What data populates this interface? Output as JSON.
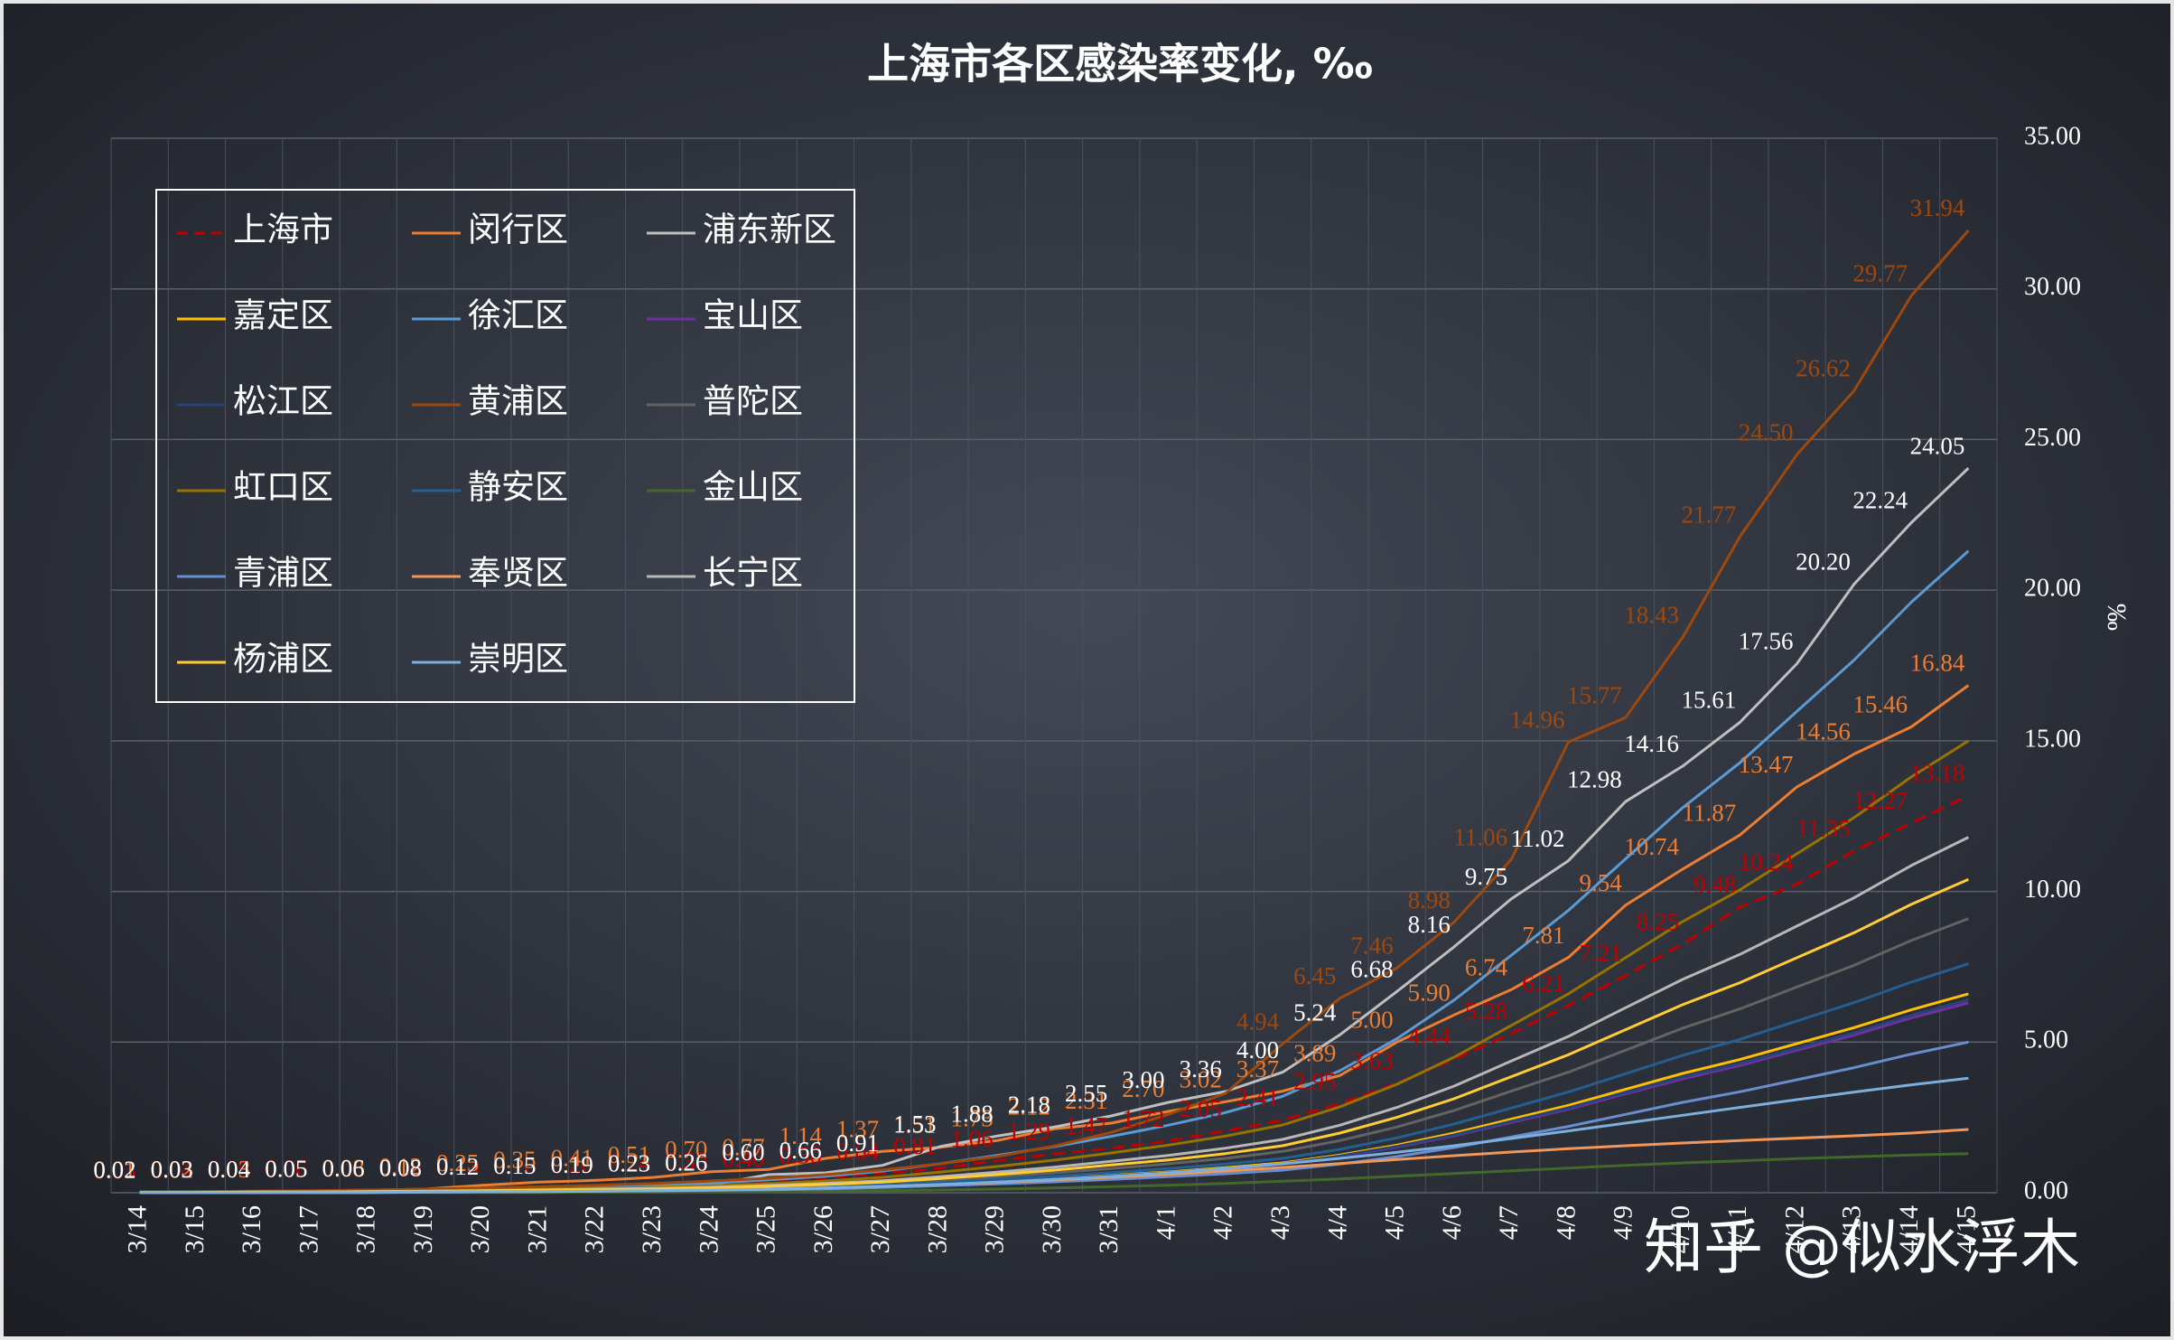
{
  "chart_data": {
    "type": "line",
    "title": "上海市各区感染率变化, ‰",
    "y_label": "‰",
    "watermark": "知乎 @似水浮木",
    "grid": true,
    "y_axis_side": "right",
    "legend": "top-left",
    "categories": [
      "3/14",
      "3/15",
      "3/16",
      "3/17",
      "3/18",
      "3/19",
      "3/20",
      "3/21",
      "3/22",
      "3/23",
      "3/24",
      "3/25",
      "3/26",
      "3/27",
      "3/28",
      "3/29",
      "3/30",
      "3/31",
      "4/1",
      "4/2",
      "4/3",
      "4/4",
      "4/5",
      "4/6",
      "4/7",
      "4/8",
      "4/9",
      "4/10",
      "4/11",
      "4/12",
      "4/13",
      "4/14",
      "4/15"
    ],
    "ylim": [
      0,
      35
    ],
    "yticks": [
      {
        "value": 0,
        "label": "0.00"
      },
      {
        "value": 5,
        "label": "5.00"
      },
      {
        "value": 10,
        "label": "10.00"
      },
      {
        "value": 15,
        "label": "15.00"
      },
      {
        "value": 20,
        "label": "20.00"
      },
      {
        "value": 25,
        "label": "25.00"
      },
      {
        "value": 30,
        "label": "30.00"
      },
      {
        "value": 35,
        "label": "35.00"
      }
    ],
    "series": [
      {
        "name": "上海市",
        "color": "#c00000",
        "dashed": true,
        "values": [
          0.03,
          0.04,
          0.05,
          0.06,
          0.08,
          0.1,
          0.13,
          0.16,
          0.2,
          0.24,
          0.3,
          0.4,
          0.5,
          0.64,
          0.81,
          1.06,
          1.29,
          1.47,
          1.72,
          2.05,
          2.41,
          2.95,
          3.63,
          4.44,
          5.28,
          6.21,
          7.21,
          8.25,
          9.48,
          10.24,
          11.35,
          12.27,
          13.18
        ],
        "value_labels": [
          "0.03",
          "0.04",
          "0.05",
          "0.06",
          "0.08",
          "0.10",
          "0.13",
          "0.16",
          "0.20",
          "0.24",
          "0.30",
          "0.40",
          "0.50",
          "0.64",
          "0.81",
          "1.06",
          "1.29",
          "1.47",
          "1.72",
          "2.05",
          "2.41",
          "2.95",
          "3.63",
          "4.44",
          "5.28",
          "6.21",
          "7.21",
          "8.25",
          "9.48",
          "10.24",
          "11.35",
          "12.27",
          "13.18"
        ]
      },
      {
        "name": "闵行区",
        "color": "#ed7d31",
        "values": [
          0.01,
          0.02,
          0.03,
          0.05,
          0.08,
          0.12,
          0.25,
          0.35,
          0.41,
          0.51,
          0.7,
          0.77,
          1.14,
          1.37,
          1.51,
          1.73,
          2.12,
          2.31,
          2.7,
          3.02,
          3.37,
          3.89,
          5.0,
          5.9,
          6.74,
          7.81,
          9.54,
          10.74,
          11.87,
          13.47,
          14.56,
          15.46,
          16.84
        ],
        "value_labels": [
          "0.01",
          "0.02",
          "0.03",
          "0.05",
          "0.08",
          "0.12",
          "0.25",
          "0.35",
          "0.41",
          "0.51",
          "0.70",
          "0.77",
          "1.14",
          "1.37",
          "1.51",
          "1.73",
          "2.12",
          "2.31",
          "2.70",
          "3.02",
          "3.37",
          "3.89",
          "5.00",
          "5.90",
          "6.74",
          "7.81",
          "9.54",
          "10.74",
          "11.87",
          "13.47",
          "14.56",
          "15.46",
          "16.84"
        ]
      },
      {
        "name": "浦东新区",
        "color": "#bfbfbf",
        "values": [
          0.02,
          0.03,
          0.04,
          0.05,
          0.06,
          0.08,
          0.12,
          0.15,
          0.19,
          0.23,
          0.26,
          0.6,
          0.66,
          0.91,
          1.53,
          1.88,
          2.18,
          2.55,
          3.0,
          3.36,
          4.0,
          5.24,
          6.68,
          8.16,
          9.75,
          11.02,
          12.98,
          14.16,
          15.61,
          17.56,
          20.2,
          22.24,
          24.05
        ],
        "value_labels": [
          "0.02",
          "0.03",
          "0.04",
          "0.05",
          "0.06",
          "0.08",
          "0.12",
          "0.15",
          "0.19",
          "0.23",
          "0.26",
          "0.60",
          "0.66",
          "0.91",
          "1.53",
          "1.88",
          "2.18",
          "2.55",
          "3.00",
          "3.36",
          "4.00",
          "5.24",
          "6.68",
          "8.16",
          "9.75",
          "11.02",
          "12.98",
          "14.16",
          "15.61",
          "17.56",
          "20.20",
          "22.24",
          "24.05"
        ]
      },
      {
        "name": "嘉定区",
        "color": "#ffc000",
        "values": [
          0.01,
          0.01,
          0.01,
          0.01,
          0.02,
          0.03,
          0.04,
          0.05,
          0.07,
          0.08,
          0.1,
          0.13,
          0.17,
          0.22,
          0.3,
          0.38,
          0.48,
          0.58,
          0.69,
          0.83,
          0.99,
          1.25,
          1.58,
          1.98,
          2.44,
          2.9,
          3.43,
          3.96,
          4.42,
          4.95,
          5.48,
          6.07,
          6.6
        ]
      },
      {
        "name": "徐汇区",
        "color": "#5b9bd5",
        "values": [
          0.02,
          0.02,
          0.04,
          0.04,
          0.06,
          0.09,
          0.13,
          0.17,
          0.21,
          0.26,
          0.32,
          0.43,
          0.55,
          0.72,
          0.96,
          1.24,
          1.53,
          1.87,
          2.24,
          2.66,
          3.2,
          4.05,
          5.11,
          6.39,
          7.88,
          9.37,
          11.08,
          12.78,
          14.27,
          15.98,
          17.68,
          19.6,
          21.3
        ]
      },
      {
        "name": "宝山区",
        "color": "#7030a0",
        "values": [
          0.01,
          0.01,
          0.01,
          0.01,
          0.02,
          0.03,
          0.04,
          0.05,
          0.06,
          0.08,
          0.09,
          0.13,
          0.16,
          0.21,
          0.28,
          0.37,
          0.45,
          0.55,
          0.66,
          0.79,
          0.95,
          1.2,
          1.51,
          1.89,
          2.33,
          2.77,
          3.28,
          3.78,
          4.22,
          4.73,
          5.23,
          5.8,
          6.3
        ]
      },
      {
        "name": "松江区",
        "color": "#264478",
        "values": [
          0.01,
          0.01,
          0.01,
          0.01,
          0.02,
          0.03,
          0.04,
          0.05,
          0.06,
          0.08,
          0.1,
          0.13,
          0.17,
          0.22,
          0.29,
          0.37,
          0.46,
          0.56,
          0.67,
          0.8,
          0.96,
          1.22,
          1.54,
          1.92,
          2.37,
          2.82,
          3.33,
          3.84,
          4.29,
          4.8,
          5.31,
          5.89,
          6.4
        ]
      },
      {
        "name": "黄浦区",
        "color": "#9e480e",
        "values": [
          0.03,
          0.04,
          0.05,
          0.07,
          0.09,
          0.12,
          0.16,
          0.2,
          0.25,
          0.31,
          0.39,
          0.48,
          0.6,
          0.76,
          0.96,
          1.2,
          1.55,
          2.0,
          2.6,
          3.3,
          4.94,
          6.45,
          7.46,
          8.98,
          11.06,
          14.96,
          15.77,
          18.43,
          21.77,
          24.5,
          26.62,
          29.77,
          31.94
        ],
        "value_labels": [
          null,
          null,
          null,
          null,
          null,
          null,
          null,
          null,
          null,
          null,
          null,
          null,
          null,
          null,
          null,
          null,
          null,
          null,
          null,
          null,
          "4.94",
          "6.45",
          "7.46",
          "8.98",
          "11.06",
          "14.96",
          "15.77",
          "18.43",
          "21.77",
          "24.50",
          "26.62",
          "29.77",
          "31.94"
        ]
      },
      {
        "name": "普陀区",
        "color": "#636363",
        "values": [
          0.01,
          0.01,
          0.02,
          0.02,
          0.03,
          0.04,
          0.05,
          0.07,
          0.09,
          0.11,
          0.14,
          0.18,
          0.24,
          0.31,
          0.41,
          0.53,
          0.66,
          0.8,
          0.96,
          1.14,
          1.37,
          1.73,
          2.18,
          2.73,
          3.37,
          4.0,
          4.73,
          5.46,
          6.1,
          6.83,
          7.55,
          8.37,
          9.1
        ]
      },
      {
        "name": "虹口区",
        "color": "#997300",
        "values": [
          0.02,
          0.02,
          0.03,
          0.03,
          0.05,
          0.06,
          0.09,
          0.12,
          0.15,
          0.18,
          0.23,
          0.3,
          0.39,
          0.51,
          0.68,
          0.87,
          1.08,
          1.32,
          1.58,
          1.88,
          2.25,
          2.85,
          3.6,
          4.5,
          5.55,
          6.6,
          7.8,
          9.0,
          10.05,
          11.25,
          12.45,
          13.8,
          15.0
        ]
      },
      {
        "name": "静安区",
        "color": "#255e91",
        "values": [
          0.01,
          0.01,
          0.02,
          0.02,
          0.02,
          0.03,
          0.05,
          0.06,
          0.08,
          0.09,
          0.11,
          0.15,
          0.2,
          0.26,
          0.34,
          0.44,
          0.55,
          0.67,
          0.8,
          0.95,
          1.14,
          1.44,
          1.82,
          2.28,
          2.81,
          3.34,
          3.95,
          4.56,
          5.09,
          5.7,
          6.31,
          6.99,
          7.6
        ]
      },
      {
        "name": "金山区",
        "color": "#43682b",
        "values": [
          0,
          0,
          0,
          0,
          0,
          0.01,
          0.01,
          0.01,
          0.02,
          0.02,
          0.03,
          0.04,
          0.05,
          0.07,
          0.09,
          0.12,
          0.16,
          0.2,
          0.25,
          0.31,
          0.38,
          0.46,
          0.55,
          0.64,
          0.73,
          0.82,
          0.91,
          0.99,
          1.06,
          1.13,
          1.19,
          1.25,
          1.3
        ]
      },
      {
        "name": "青浦区",
        "color": "#698ed0",
        "values": [
          0.01,
          0.01,
          0.01,
          0.01,
          0.02,
          0.02,
          0.03,
          0.04,
          0.05,
          0.06,
          0.08,
          0.1,
          0.13,
          0.17,
          0.23,
          0.29,
          0.36,
          0.44,
          0.53,
          0.63,
          0.75,
          0.95,
          1.2,
          1.5,
          1.85,
          2.2,
          2.6,
          3.0,
          3.35,
          3.75,
          4.15,
          4.6,
          5.0
        ]
      },
      {
        "name": "奉贤区",
        "color": "#f1975a",
        "values": [
          0,
          0,
          0.01,
          0.01,
          0.01,
          0.02,
          0.03,
          0.04,
          0.05,
          0.07,
          0.09,
          0.12,
          0.16,
          0.21,
          0.27,
          0.34,
          0.42,
          0.51,
          0.61,
          0.72,
          0.84,
          0.97,
          1.1,
          1.23,
          1.35,
          1.46,
          1.56,
          1.65,
          1.73,
          1.81,
          1.89,
          1.98,
          2.1
        ]
      },
      {
        "name": "长宁区",
        "color": "#b7b7b7",
        "values": [
          0.01,
          0.01,
          0.02,
          0.02,
          0.04,
          0.05,
          0.07,
          0.09,
          0.12,
          0.14,
          0.18,
          0.24,
          0.31,
          0.4,
          0.53,
          0.68,
          0.85,
          1.04,
          1.24,
          1.48,
          1.77,
          2.24,
          2.83,
          3.54,
          4.37,
          5.19,
          6.14,
          7.08,
          7.91,
          8.85,
          9.79,
          10.86,
          11.8
        ]
      },
      {
        "name": "杨浦区",
        "color": "#ffcd33",
        "values": [
          0.01,
          0.01,
          0.02,
          0.02,
          0.03,
          0.04,
          0.06,
          0.08,
          0.1,
          0.12,
          0.16,
          0.21,
          0.27,
          0.35,
          0.47,
          0.6,
          0.75,
          0.92,
          1.09,
          1.3,
          1.56,
          1.98,
          2.5,
          3.12,
          3.85,
          4.58,
          5.41,
          6.24,
          6.97,
          7.8,
          8.63,
          9.57,
          10.4
        ]
      },
      {
        "name": "崇明区",
        "color": "#7cafdd",
        "values": [
          0,
          0,
          0,
          0.01,
          0.01,
          0.02,
          0.03,
          0.04,
          0.05,
          0.07,
          0.09,
          0.12,
          0.16,
          0.21,
          0.27,
          0.35,
          0.44,
          0.54,
          0.66,
          0.8,
          0.96,
          1.14,
          1.34,
          1.56,
          1.8,
          2.05,
          2.31,
          2.57,
          2.83,
          3.09,
          3.34,
          3.58,
          3.8
        ]
      }
    ]
  }
}
